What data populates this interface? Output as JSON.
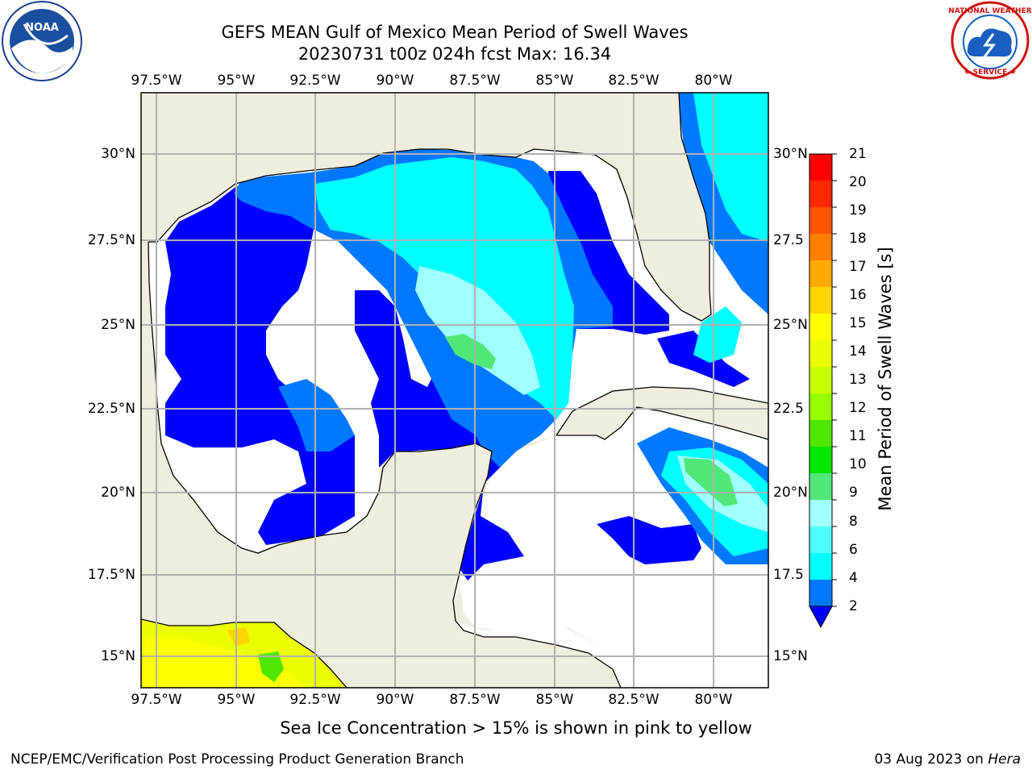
{
  "title": {
    "line1": "GEFS MEAN Gulf of Mexico Mean Period of Swell Waves",
    "line2": "20230731 t00z 024h fcst   Max: 16.34"
  },
  "map": {
    "lon_labels": [
      "97.5°W",
      "95°W",
      "92.5°W",
      "90°W",
      "87.5°W",
      "85°W",
      "82.5°W",
      "80°W"
    ],
    "lat_labels": [
      "30°N",
      "27.5°N",
      "25°N",
      "22.5°N",
      "20°N",
      "17.5°N",
      "15°N"
    ],
    "lat_labels_right": [
      "30°N",
      "27.5",
      "25°N",
      "22.5",
      "20°N",
      "17.5",
      "15°N"
    ],
    "colors": {
      "land": "#efedde",
      "ocean_white": "#ffffff",
      "grid": "#b0b0b0"
    }
  },
  "colorbar": {
    "label": "Mean Period of Swell Waves [s]",
    "ticks": [
      "21",
      "20",
      "19",
      "18",
      "17",
      "16",
      "15",
      "14",
      "13",
      "12",
      "11",
      "10",
      "9",
      "8",
      "6",
      "4",
      "2"
    ],
    "colors": [
      "#ff0000",
      "#ff2800",
      "#ff5500",
      "#ff8000",
      "#ffaa00",
      "#ffd400",
      "#ffff00",
      "#ecff00",
      "#c8ff00",
      "#96ff00",
      "#50e600",
      "#00e600",
      "#50e878",
      "#a0ffff",
      "#50ffff",
      "#00ffff",
      "#0078ff",
      "#0000ff"
    ]
  },
  "logos": {
    "left": "noaa-logo",
    "right": "nws-logo"
  },
  "footer": {
    "note": "Sea Ice Concentration > 15% is shown in pink to yellow",
    "credit": "NCEP/EMC/Verification Post Processing Product Generation Branch",
    "date": "03 Aug 2023 on",
    "machine": "Hera"
  }
}
